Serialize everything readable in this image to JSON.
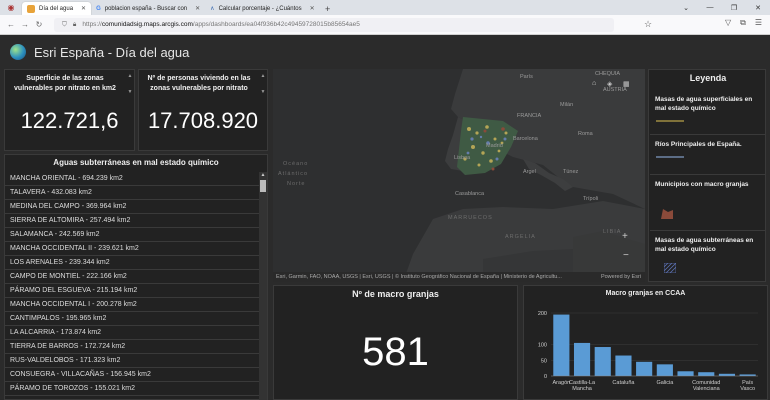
{
  "browser": {
    "tabs": [
      {
        "label": "Día del agua",
        "active": true
      },
      {
        "label": "poblacion españa - Buscar con",
        "active": false
      },
      {
        "label": "Calcular porcentaje - ¿Cuántos",
        "active": false
      }
    ],
    "url_host": "comunidadsig.maps.arcgis.com",
    "url_prefix": "https://",
    "url_rest": "/apps/dashboards/ea04f936b42c49459728015b85654ae5"
  },
  "app": {
    "title": "Esri España - Día del agua"
  },
  "kpi1": {
    "label": "Superficie de las zonas vulnerables por nitrato en km2",
    "value": "122.721,6"
  },
  "kpi2": {
    "label": "Nº de personas viviendo en las zonas vulnerables por nitrato",
    "value": "17.708.920"
  },
  "list": {
    "title": "Aguas subterráneas en mal estado químico",
    "items": [
      "MANCHA ORIENTAL - 694.239 km2",
      "TALAVERA - 432.083 km2",
      "MEDINA DEL CAMPO - 369.964 km2",
      "SIERRA DE ALTOMIRA - 257.494 km2",
      "SALAMANCA - 242.569 km2",
      "MANCHA OCCIDENTAL II - 239.621 km2",
      "LOS ARENALES - 239.344 km2",
      "CAMPO DE MONTIEL - 222.166 km2",
      "PÁRAMO DEL ESGUEVA - 215.194 km2",
      "MANCHA OCCIDENTAL I - 200.278 km2",
      "CANTIMPALOS - 195.965 km2",
      "LA ALCARRIA - 173.874 km2",
      "TIERRA DE BARROS - 172.724 km2",
      "RUS-VALDELOBOS - 171.323 km2",
      "CONSUEGRA - VILLACAÑAS - 156.945 km2",
      "PÁRAMO DE TOROZOS - 155.021 km2"
    ]
  },
  "map": {
    "labels": {
      "paris": "París",
      "chequia": "CHEQUIA",
      "austria": "AUSTRIA",
      "milan": "Milán",
      "francia": "FRANCIA",
      "madrid": "Madrid",
      "barcelona": "Barcelona",
      "roma": "Roma",
      "lisboa": "Lisboa",
      "argel": "Argel",
      "tunez": "Túnez",
      "casablanca": "Casablanca",
      "tripoli": "Trípoli",
      "marruecos": "MARRUECOS",
      "argelia": "ARGELIA",
      "libia": "LIBIA",
      "oceano": "Océano",
      "atlantico": "Atlántico",
      "norte": "Norte"
    },
    "attribution": "Esri, Garmin, FAO, NOAA, USGS | Esri, USGS | © Instituto Geográfico Nacional de España | Ministerio de Agricultu...",
    "powered": "Powered by Esri"
  },
  "legend": {
    "title": "Leyenda",
    "items": [
      {
        "label": "Masas de agua superficiales en mal estado químico",
        "swatch": "line",
        "color": "#b9a24a"
      },
      {
        "label": "Ríos Principales de España.",
        "swatch": "line",
        "color": "#6f86a8"
      },
      {
        "label": "Municipios con macro granjas",
        "swatch": "poly",
        "color": "#8a4a3a"
      },
      {
        "label": "Masas de agua subterráneas en mal estado químico",
        "swatch": "hatch",
        "color": "#5a6fb0"
      }
    ]
  },
  "granjas": {
    "label": "Nº de macro granjas",
    "value": "581"
  },
  "chart_data": {
    "type": "bar",
    "title": "Macro granjas en CCAA",
    "categories": [
      "Aragón",
      "Castilla-La Mancha",
      "",
      "Cataluña",
      "",
      "Galicia",
      "",
      "Comunidad Valenciana",
      "",
      "País Vasco"
    ],
    "category_lines": [
      [
        "Aragón"
      ],
      [
        "Castilla-La",
        "Mancha"
      ],
      [],
      [
        "Cataluña"
      ],
      [],
      [
        "Galicia"
      ],
      [],
      [
        "Comunidad",
        "Valenciana"
      ],
      [],
      [
        "País",
        "Vasco"
      ]
    ],
    "values": [
      195,
      105,
      92,
      65,
      45,
      37,
      15,
      12,
      7,
      5
    ],
    "ylim": [
      0,
      200
    ],
    "yticks": [
      "200",
      "100",
      "50",
      "0"
    ],
    "ytick_values": [
      200,
      100,
      50,
      0
    ],
    "color": "#5a9bd5",
    "grid": true
  }
}
